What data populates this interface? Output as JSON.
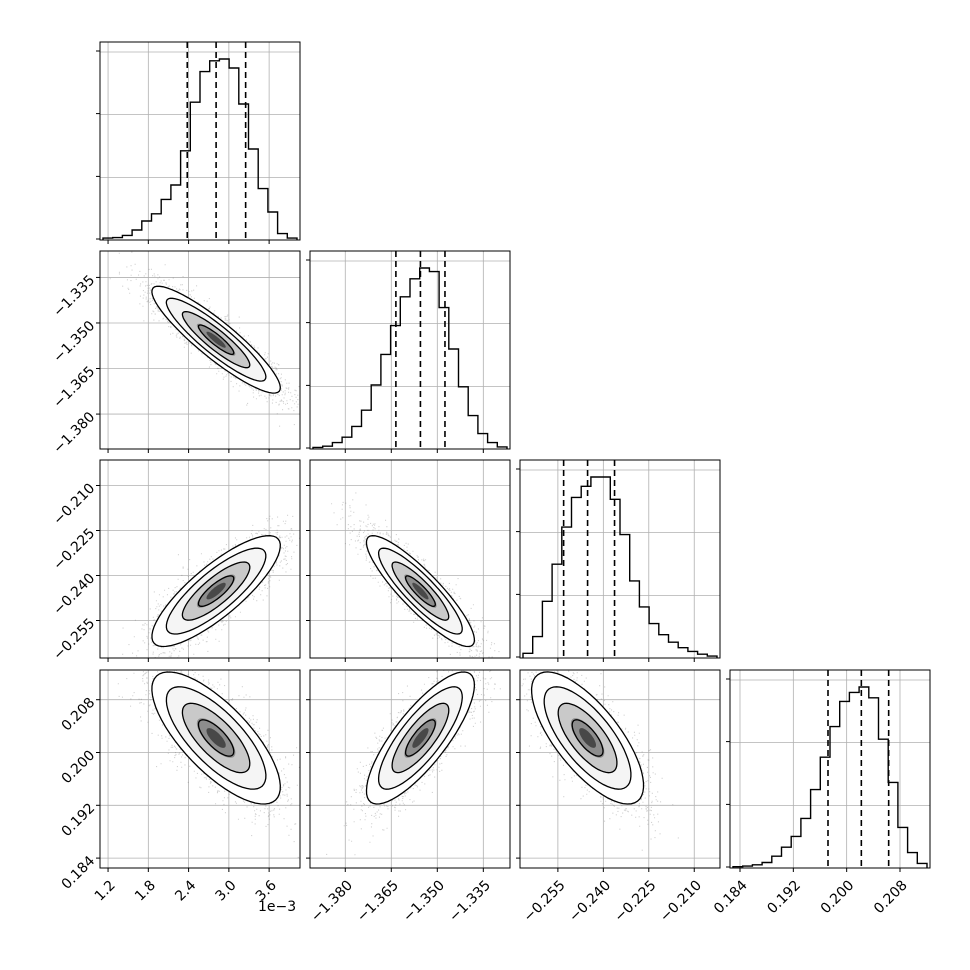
{
  "chart_data": {
    "type": "corner",
    "parameters": [
      {
        "range": [
          1.08,
          4.06
        ],
        "ticks": [
          1.2,
          1.8,
          2.4,
          3.0,
          3.6
        ],
        "tick_labels": [
          "1.2",
          "1.8",
          "2.4",
          "3.0",
          "3.6"
        ],
        "offset_label": "1e−3",
        "quantiles": [
          2.38,
          2.81,
          3.25
        ],
        "hist": [
          0.005,
          0.008,
          0.02,
          0.05,
          0.1,
          0.14,
          0.22,
          0.3,
          0.49,
          0.76,
          0.93,
          0.99,
          1.0,
          0.95,
          0.75,
          0.5,
          0.28,
          0.15,
          0.03,
          0.005
        ]
      },
      {
        "range": [
          -1.3915,
          -1.3263
        ],
        "ticks": [
          -1.38,
          -1.365,
          -1.35,
          -1.335
        ],
        "tick_labels": [
          "−1.380",
          "−1.365",
          "−1.350",
          "−1.335"
        ],
        "quantiles": [
          -1.3635,
          -1.3555,
          -1.3475
        ],
        "hist": [
          0.003,
          0.01,
          0.03,
          0.06,
          0.12,
          0.21,
          0.35,
          0.52,
          0.68,
          0.84,
          0.94,
          1.0,
          0.98,
          0.78,
          0.55,
          0.34,
          0.18,
          0.08,
          0.03,
          0.006
        ]
      },
      {
        "range": [
          -0.2675,
          -0.2015
        ],
        "ticks": [
          -0.255,
          -0.24,
          -0.225,
          -0.21
        ],
        "tick_labels": [
          "−0.255",
          "−0.240",
          "−0.225",
          "−0.210"
        ],
        "quantiles": [
          -0.2531,
          -0.2452,
          -0.2363
        ],
        "hist": [
          0.02,
          0.11,
          0.3,
          0.5,
          0.7,
          0.86,
          0.92,
          0.97,
          0.97,
          0.85,
          0.66,
          0.41,
          0.27,
          0.18,
          0.12,
          0.08,
          0.05,
          0.03,
          0.015,
          0.005
        ]
      },
      {
        "range": [
          0.1825,
          0.2125
        ],
        "ticks": [
          0.184,
          0.192,
          0.2,
          0.208
        ],
        "tick_labels": [
          "0.184",
          "0.192",
          "0.200",
          "0.208"
        ],
        "quantiles": [
          0.1972,
          0.2022,
          0.2063
        ],
        "hist": [
          0.002,
          0.005,
          0.012,
          0.025,
          0.06,
          0.11,
          0.17,
          0.27,
          0.43,
          0.61,
          0.78,
          0.92,
          0.97,
          1.0,
          0.94,
          0.71,
          0.47,
          0.22,
          0.08,
          0.02
        ]
      }
    ],
    "correlations": {
      "1-0": -0.9,
      "2-0": 0.82,
      "2-1": -0.88,
      "3-0": -0.74,
      "3-1": 0.8,
      "3-2": -0.72
    },
    "colors": {
      "line": "#000000",
      "grid": "#b0b0b0",
      "points": "#7f7f7f"
    }
  }
}
